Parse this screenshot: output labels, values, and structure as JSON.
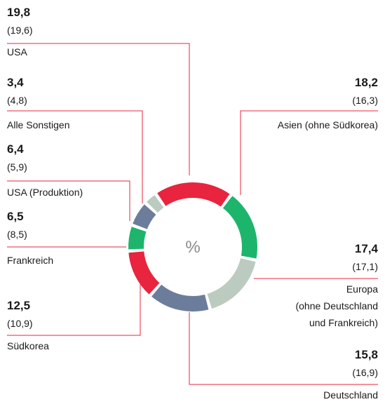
{
  "chart_data": {
    "type": "donut",
    "categories": [
      "USA",
      "Asien (ohne Südkorea)",
      "Europa\n(ohne Deutschland\nund Frankreich)",
      "Deutschland",
      "Südkorea",
      "Frankreich",
      "USA (Produktion)",
      "Alle Sonstigen"
    ],
    "values": [
      19.8,
      18.2,
      17.4,
      15.8,
      12.5,
      6.5,
      6.4,
      3.4
    ],
    "value_labels": [
      "19,8",
      "18,2",
      "17,4",
      "15,8",
      "12,5",
      "6,5",
      "6,4",
      "3,4"
    ],
    "previous_labels": [
      "(19,6)",
      "(16,3)",
      "(17,1)",
      "(16,9)",
      "(10,9)",
      "(8,5)",
      "(5,9)",
      "(4,8)"
    ],
    "colors": [
      "#e8243e",
      "#1db56c",
      "#bccbc0",
      "#6c7d9b",
      "#e8243e",
      "#1db56c",
      "#6c7d9b",
      "#bccbc0"
    ],
    "center_label": "%"
  }
}
